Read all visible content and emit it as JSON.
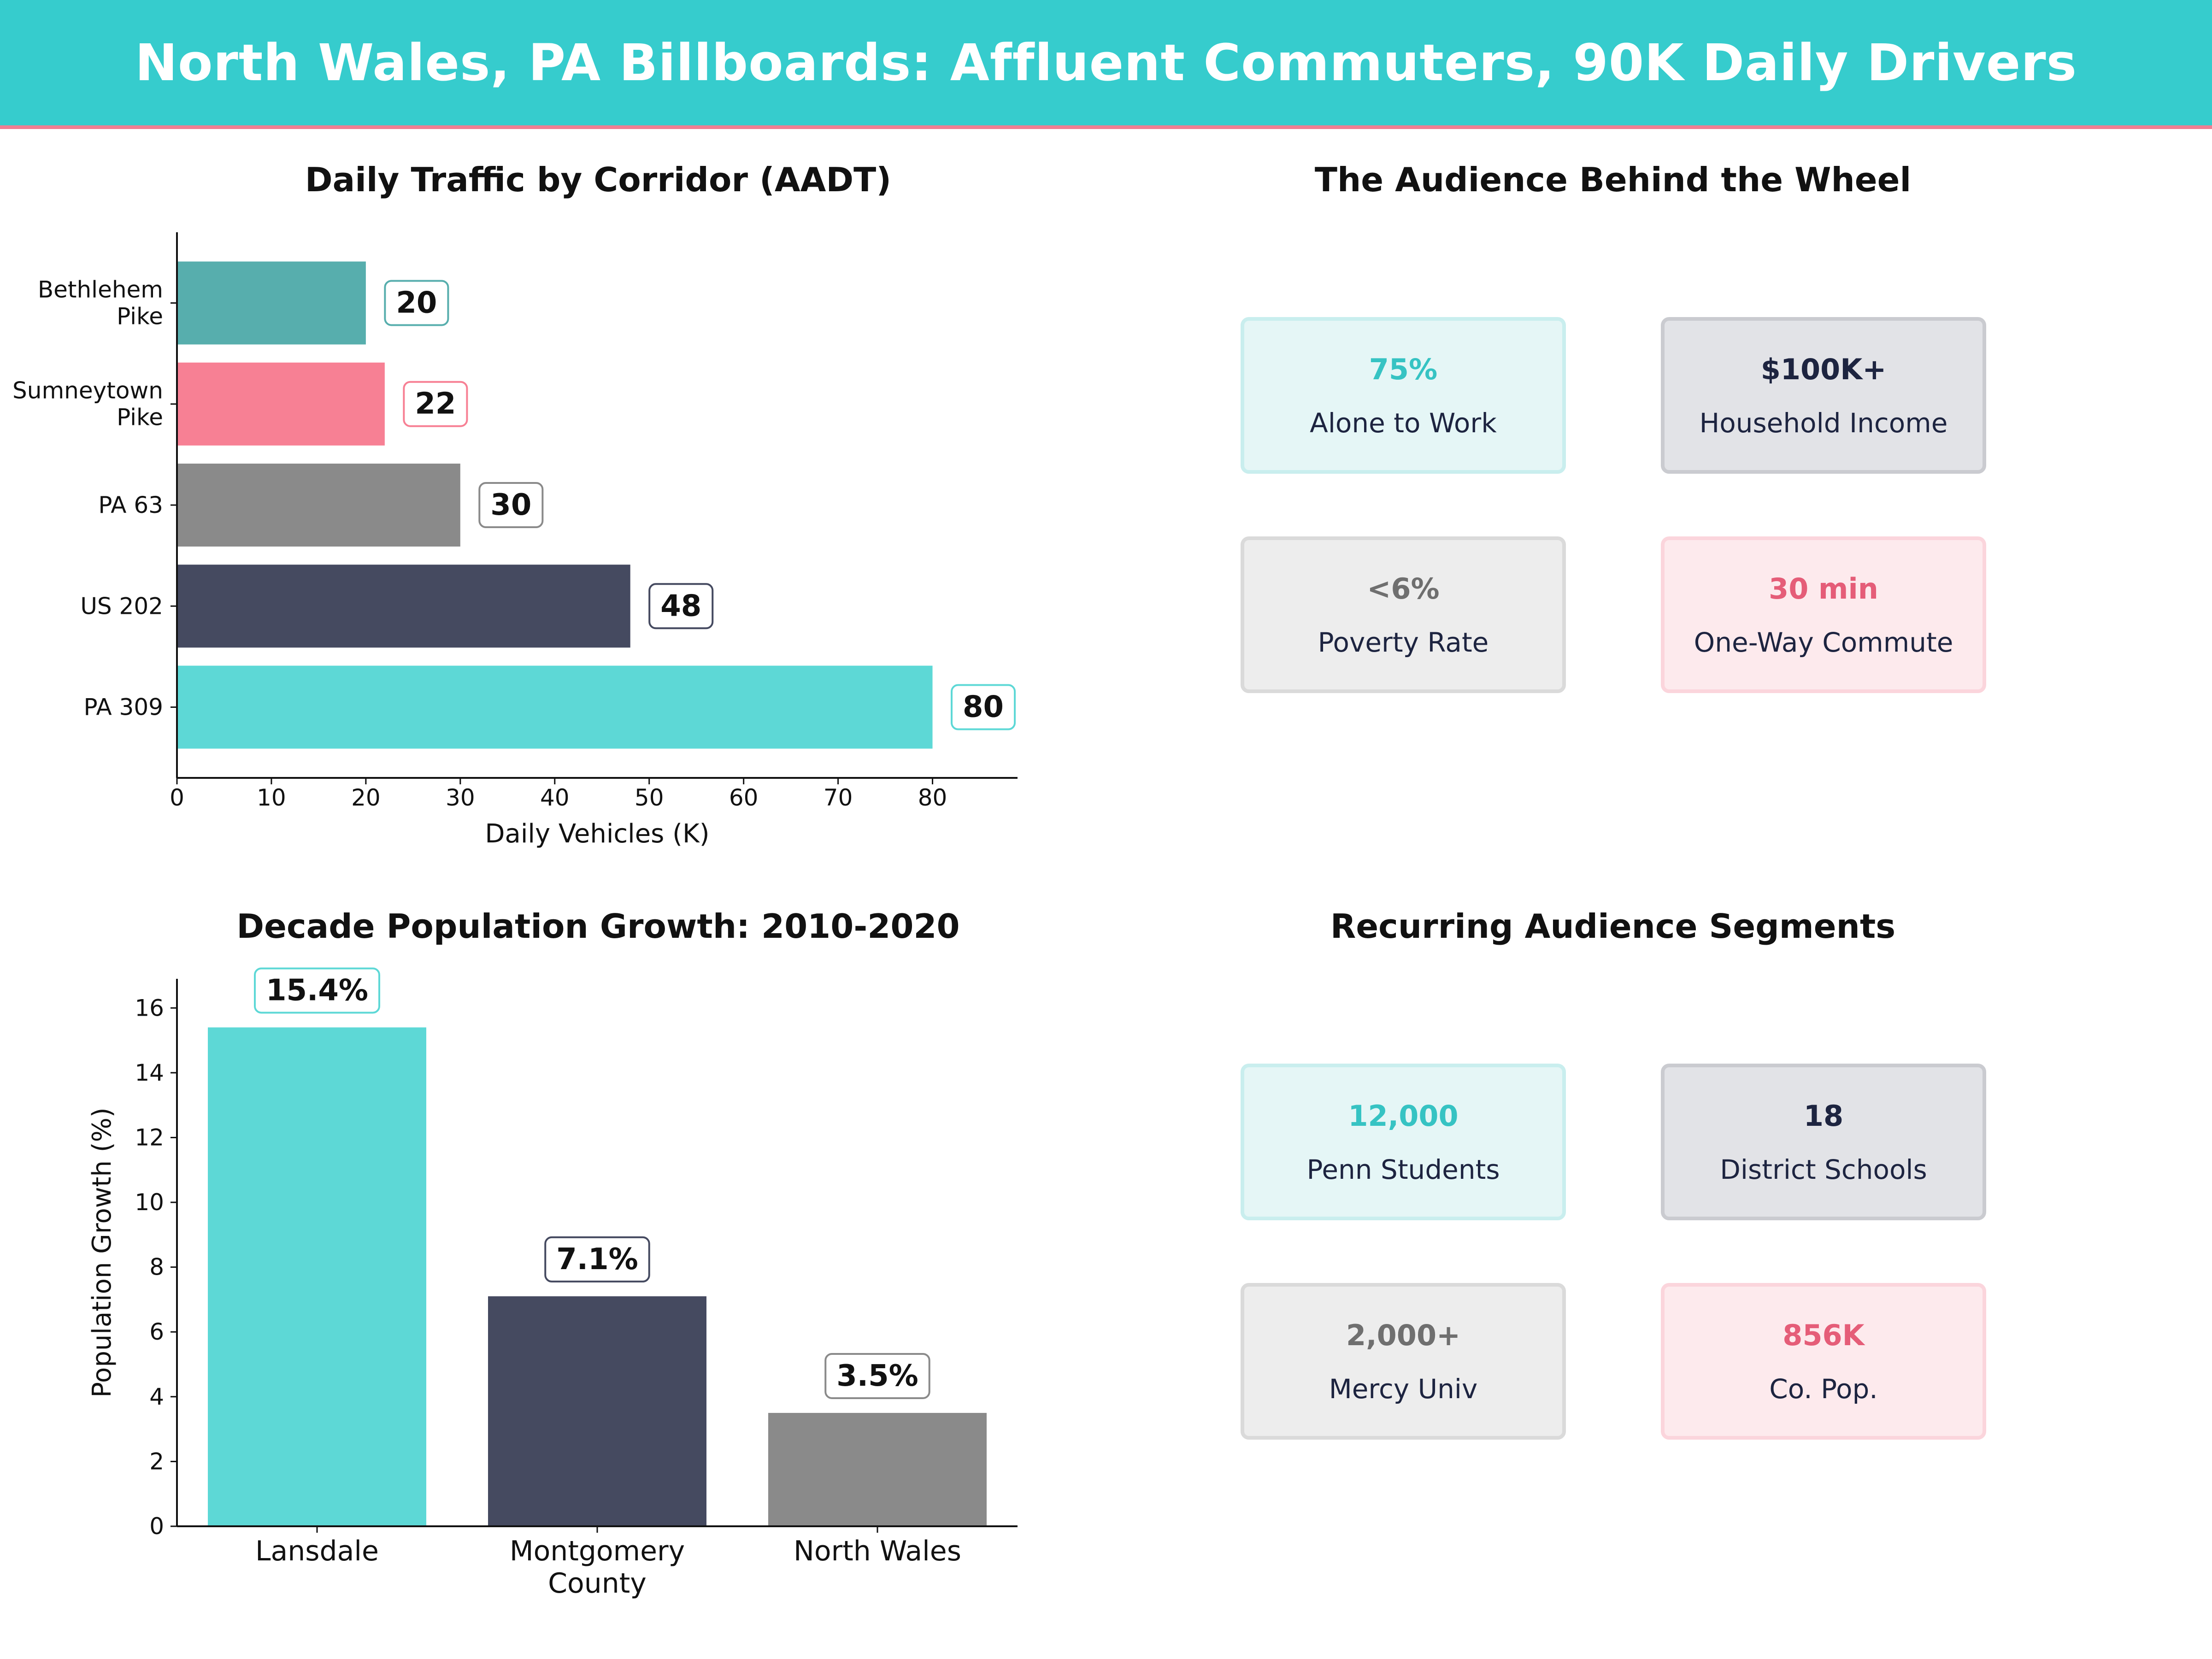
{
  "header": {
    "title": "North Wales, PA Billboards: Affluent Commuters, 90K Daily Drivers"
  },
  "colors": {
    "teal": "#5dd8d6",
    "teal_dark": "#57aead",
    "pink": "#f78094",
    "gray": "#8a8a8a",
    "navy": "#454a60",
    "banner": "#36cccd",
    "accent_line": "#f07e92"
  },
  "chart_data": [
    {
      "type": "bar",
      "orientation": "horizontal",
      "title": "Daily Traffic by Corridor (AADT)",
      "categories": [
        "PA 309",
        "US 202",
        "PA 63",
        "Sumneytown\nPike",
        "Bethlehem\nPike"
      ],
      "values": [
        80,
        48,
        30,
        22,
        20
      ],
      "data_labels": [
        "80",
        "48",
        "30",
        "22",
        "20"
      ],
      "colors": [
        "#5dd8d6",
        "#454a60",
        "#8a8a8a",
        "#f78094",
        "#57aead"
      ],
      "xlabel": "Daily Vehicles (K)",
      "ylabel": "",
      "xlim": [
        0,
        89
      ],
      "xticks": [
        0,
        10,
        20,
        30,
        40,
        50,
        60,
        70,
        80
      ],
      "grid": false
    },
    {
      "type": "bar",
      "title": "Decade Population Growth: 2010-2020",
      "categories": [
        "Lansdale",
        "Montgomery\nCounty",
        "North Wales"
      ],
      "values": [
        15.4,
        7.1,
        3.5
      ],
      "data_labels": [
        "15.4%",
        "7.1%",
        "3.5%"
      ],
      "colors": [
        "#5dd8d6",
        "#454a60",
        "#8a8a8a"
      ],
      "xlabel": "",
      "ylabel": "Population Growth (%)",
      "ylim": [
        0,
        16.9
      ],
      "yticks": [
        0,
        2,
        4,
        6,
        8,
        10,
        12,
        14,
        16
      ],
      "grid": false
    }
  ],
  "audience": {
    "title": "The Audience Behind the Wheel",
    "tiles": [
      {
        "value": "75%",
        "label": "Alone to Work",
        "value_color": "#36c3c3",
        "bg": "#e5f6f6",
        "border": "#c9eeee"
      },
      {
        "value": "$100K+",
        "label": "Household Income",
        "value_color": "#1d2440",
        "bg": "#e2e3e7",
        "border": "#cacbd0"
      },
      {
        "value": "<6%",
        "label": "Poverty Rate",
        "value_color": "#6f6f6f",
        "bg": "#ededed",
        "border": "#dadada"
      },
      {
        "value": "30 min",
        "label": "One-Way Commute",
        "value_color": "#e55d78",
        "bg": "#fdeaed",
        "border": "#fbd5dc"
      }
    ]
  },
  "segments": {
    "title": "Recurring Audience Segments",
    "tiles": [
      {
        "value": "12,000",
        "label": "Penn Students",
        "value_color": "#36c3c3",
        "bg": "#e5f6f6",
        "border": "#c9eeee"
      },
      {
        "value": "18",
        "label": "District Schools",
        "value_color": "#1d2440",
        "bg": "#e2e3e7",
        "border": "#cacbd0"
      },
      {
        "value": "2,000+",
        "label": "Mercy Univ",
        "value_color": "#6f6f6f",
        "bg": "#ededed",
        "border": "#dadada"
      },
      {
        "value": "856K",
        "label": "Co. Pop.",
        "value_color": "#e55d78",
        "bg": "#fdeaed",
        "border": "#fbd5dc"
      }
    ]
  }
}
